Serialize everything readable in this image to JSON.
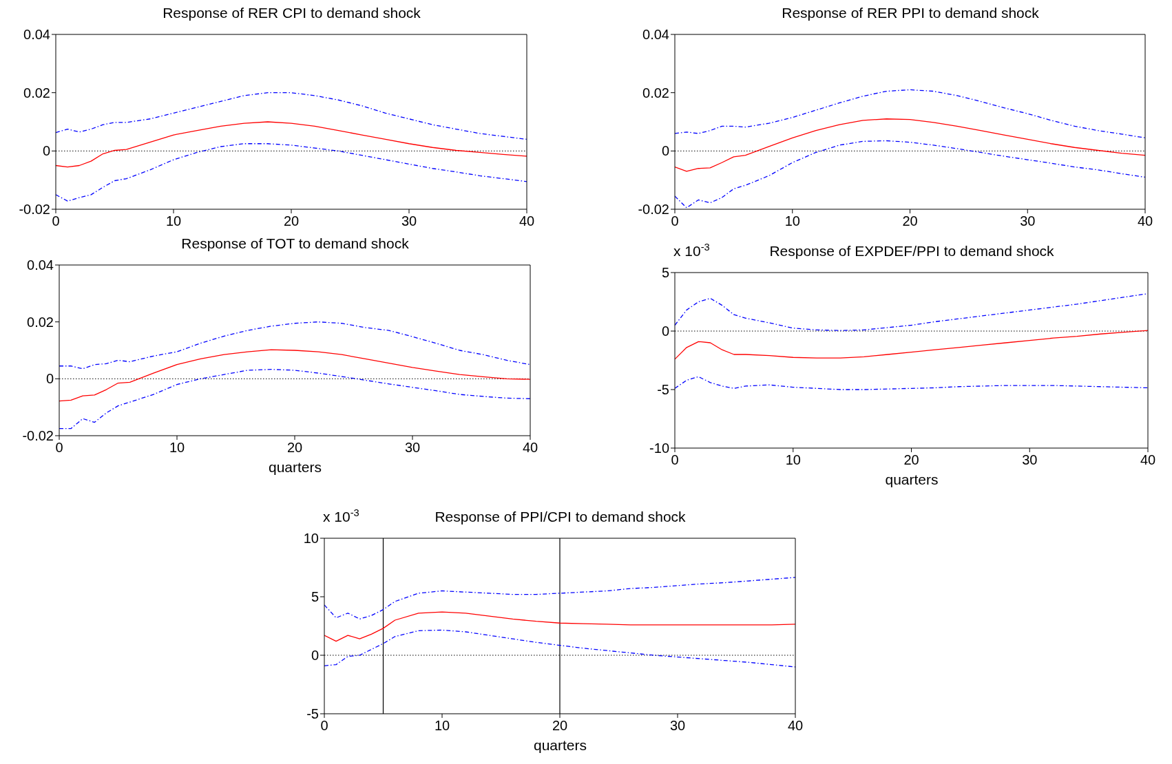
{
  "chart_data": [
    {
      "type": "line",
      "title": "Response of RER CPI to demand shock",
      "x": [
        0,
        1,
        2,
        3,
        4,
        5,
        6,
        8,
        10,
        12,
        14,
        16,
        18,
        20,
        22,
        24,
        26,
        28,
        30,
        32,
        34,
        36,
        38,
        40
      ],
      "xlim": [
        0,
        40
      ],
      "xticks": [
        0,
        10,
        20,
        30,
        40
      ],
      "ylim": [
        -0.02,
        0.04
      ],
      "yticks": [
        -0.02,
        0,
        0.02,
        0.04
      ],
      "line_style": "solid",
      "marker": "none",
      "series": [
        {
          "color": "#0000ff",
          "line_style": "dashed",
          "values": [
            0.0063,
            0.0075,
            0.0065,
            0.0075,
            0.009,
            0.0098,
            0.0098,
            0.011,
            0.013,
            0.015,
            0.017,
            0.019,
            0.02,
            0.02,
            0.019,
            0.0175,
            0.0155,
            0.013,
            0.011,
            0.009,
            0.0075,
            0.006,
            0.005,
            0.004
          ]
        },
        {
          "color": "#ff0000",
          "values": [
            -0.005,
            -0.0055,
            -0.005,
            -0.0035,
            -0.001,
            0.0002,
            0.0005,
            0.003,
            0.0055,
            0.007,
            0.0085,
            0.0095,
            0.01,
            0.0095,
            0.0085,
            0.007,
            0.0055,
            0.004,
            0.0025,
            0.0012,
            0.0002,
            -0.0005,
            -0.0012,
            -0.0018
          ]
        },
        {
          "color": "#0000ff",
          "line_style": "dashed",
          "values": [
            -0.015,
            -0.0172,
            -0.016,
            -0.015,
            -0.0125,
            -0.0102,
            -0.0095,
            -0.0065,
            -0.003,
            -0.0005,
            0.0015,
            0.0025,
            0.0025,
            0.002,
            0.001,
            0,
            -0.0015,
            -0.003,
            -0.0045,
            -0.006,
            -0.0072,
            -0.0085,
            -0.0095,
            -0.0105
          ]
        }
      ],
      "ref_lines": [
        {
          "axis": "y",
          "value": 0,
          "color": "#000000",
          "line_style": "dotted"
        }
      ]
    },
    {
      "type": "line",
      "title": "Response of RER PPI to demand shock",
      "x": [
        0,
        1,
        2,
        3,
        4,
        5,
        6,
        8,
        10,
        12,
        14,
        16,
        18,
        20,
        22,
        24,
        26,
        28,
        30,
        32,
        34,
        36,
        38,
        40
      ],
      "xlim": [
        0,
        40
      ],
      "xticks": [
        0,
        10,
        20,
        30,
        40
      ],
      "ylim": [
        -0.02,
        0.04
      ],
      "yticks": [
        -0.02,
        0,
        0.02,
        0.04
      ],
      "line_style": "solid",
      "marker": "none",
      "series": [
        {
          "color": "#0000ff",
          "line_style": "dashed",
          "values": [
            0.006,
            0.0065,
            0.006,
            0.007,
            0.0085,
            0.0085,
            0.0082,
            0.0095,
            0.0115,
            0.014,
            0.0165,
            0.0188,
            0.0205,
            0.021,
            0.0205,
            0.019,
            0.017,
            0.0148,
            0.0128,
            0.0105,
            0.0085,
            0.007,
            0.0058,
            0.0045
          ]
        },
        {
          "color": "#ff0000",
          "values": [
            -0.0055,
            -0.007,
            -0.006,
            -0.0058,
            -0.004,
            -0.002,
            -0.0015,
            0.0015,
            0.0045,
            0.007,
            0.009,
            0.0105,
            0.011,
            0.0108,
            0.0098,
            0.0085,
            0.007,
            0.0055,
            0.004,
            0.0025,
            0.0012,
            0.0002,
            -0.0008,
            -0.0015
          ]
        },
        {
          "color": "#0000ff",
          "line_style": "dashed",
          "values": [
            -0.0155,
            -0.0195,
            -0.0168,
            -0.0178,
            -0.016,
            -0.013,
            -0.0118,
            -0.0085,
            -0.004,
            -0.0005,
            0.002,
            0.0033,
            0.0035,
            0.003,
            0.002,
            0.0008,
            -0.0005,
            -0.0018,
            -0.003,
            -0.0042,
            -0.0055,
            -0.0065,
            -0.0078,
            -0.009
          ]
        }
      ],
      "ref_lines": [
        {
          "axis": "y",
          "value": 0,
          "color": "#000000",
          "line_style": "dotted"
        }
      ]
    },
    {
      "type": "line",
      "title": "Response of TOT to demand shock",
      "xlabel": "quarters",
      "x": [
        0,
        1,
        2,
        3,
        4,
        5,
        6,
        8,
        10,
        12,
        14,
        16,
        18,
        20,
        22,
        24,
        26,
        28,
        30,
        32,
        34,
        36,
        38,
        40
      ],
      "xlim": [
        0,
        40
      ],
      "xticks": [
        0,
        10,
        20,
        30,
        40
      ],
      "ylim": [
        -0.02,
        0.04
      ],
      "yticks": [
        -0.02,
        0,
        0.02,
        0.04
      ],
      "line_style": "solid",
      "marker": "none",
      "series": [
        {
          "color": "#0000ff",
          "line_style": "dashed",
          "values": [
            0.0045,
            0.0045,
            0.0035,
            0.005,
            0.0053,
            0.0065,
            0.006,
            0.008,
            0.0095,
            0.0125,
            0.015,
            0.017,
            0.0185,
            0.0195,
            0.02,
            0.0195,
            0.018,
            0.017,
            0.0148,
            0.0125,
            0.01,
            0.0085,
            0.0065,
            0.005
          ]
        },
        {
          "color": "#ff0000",
          "values": [
            -0.0078,
            -0.0075,
            -0.006,
            -0.0057,
            -0.0038,
            -0.0015,
            -0.0012,
            0.002,
            0.005,
            0.007,
            0.0085,
            0.0095,
            0.0102,
            0.01,
            0.0095,
            0.0085,
            0.007,
            0.0055,
            0.004,
            0.0027,
            0.0015,
            0.0007,
            0,
            -0.0002
          ]
        },
        {
          "color": "#0000ff",
          "line_style": "dashed",
          "values": [
            -0.0175,
            -0.0175,
            -0.014,
            -0.0153,
            -0.012,
            -0.0095,
            -0.0082,
            -0.0055,
            -0.002,
            0,
            0.0015,
            0.003,
            0.0033,
            0.003,
            0.002,
            0.0008,
            -0.0005,
            -0.0018,
            -0.003,
            -0.0042,
            -0.0055,
            -0.0062,
            -0.0068,
            -0.007
          ]
        }
      ],
      "ref_lines": [
        {
          "axis": "y",
          "value": 0,
          "color": "#000000",
          "line_style": "dotted"
        }
      ]
    },
    {
      "type": "line",
      "title": "Response of EXPDEF/PPI to demand shock",
      "xlabel": "quarters",
      "annotations": [
        "x 10$^{-3}$"
      ],
      "x": [
        0,
        1,
        2,
        3,
        4,
        5,
        6,
        8,
        10,
        12,
        14,
        16,
        18,
        20,
        22,
        24,
        26,
        28,
        30,
        32,
        34,
        36,
        38,
        40
      ],
      "xlim": [
        0,
        40
      ],
      "xticks": [
        0,
        10,
        20,
        30,
        40
      ],
      "ylim": [
        -10,
        5
      ],
      "yticks": [
        -10,
        -5,
        0,
        5
      ],
      "line_style": "solid",
      "marker": "none",
      "series": [
        {
          "color": "#0000ff",
          "line_style": "dashed",
          "values": [
            0.5,
            1.8,
            2.5,
            2.8,
            2.2,
            1.4,
            1.1,
            0.7,
            0.25,
            0.1,
            0.05,
            0.1,
            0.3,
            0.5,
            0.8,
            1.05,
            1.3,
            1.55,
            1.8,
            2.05,
            2.3,
            2.6,
            2.9,
            3.2
          ]
        },
        {
          "color": "#ff0000",
          "values": [
            -2.4,
            -1.4,
            -0.9,
            -1.0,
            -1.6,
            -2.0,
            -2.0,
            -2.1,
            -2.25,
            -2.3,
            -2.3,
            -2.2,
            -2.0,
            -1.8,
            -1.6,
            -1.4,
            -1.2,
            -1.0,
            -0.8,
            -0.6,
            -0.45,
            -0.25,
            -0.1,
            0.05
          ]
        },
        {
          "color": "#0000ff",
          "line_style": "dashed",
          "values": [
            -4.9,
            -4.2,
            -3.9,
            -4.4,
            -4.7,
            -4.9,
            -4.7,
            -4.6,
            -4.8,
            -4.9,
            -5.0,
            -5.0,
            -4.95,
            -4.9,
            -4.85,
            -4.75,
            -4.7,
            -4.65,
            -4.65,
            -4.65,
            -4.7,
            -4.75,
            -4.8,
            -4.85
          ]
        }
      ],
      "ref_lines": [
        {
          "axis": "y",
          "value": 0,
          "color": "#000000",
          "line_style": "dotted"
        }
      ]
    },
    {
      "type": "line",
      "title": "Response of PPI/CPI to demand shock",
      "xlabel": "quarters",
      "annotations": [
        "x 10$^{-3}$"
      ],
      "x": [
        0,
        1,
        2,
        3,
        4,
        5,
        6,
        8,
        10,
        12,
        14,
        16,
        18,
        20,
        22,
        24,
        26,
        28,
        30,
        32,
        34,
        36,
        38,
        40
      ],
      "xlim": [
        0,
        40
      ],
      "xticks": [
        0,
        10,
        20,
        30,
        40
      ],
      "ylim": [
        -5,
        10
      ],
      "yticks": [
        -5,
        0,
        5,
        10
      ],
      "line_style": "solid",
      "marker": "none",
      "series": [
        {
          "color": "#0000ff",
          "line_style": "dashed",
          "values": [
            4.3,
            3.2,
            3.6,
            3.1,
            3.4,
            3.9,
            4.6,
            5.3,
            5.5,
            5.4,
            5.3,
            5.2,
            5.2,
            5.3,
            5.4,
            5.5,
            5.7,
            5.8,
            5.95,
            6.1,
            6.2,
            6.35,
            6.5,
            6.65
          ]
        },
        {
          "color": "#ff0000",
          "values": [
            1.7,
            1.2,
            1.7,
            1.4,
            1.8,
            2.3,
            3.0,
            3.6,
            3.7,
            3.6,
            3.35,
            3.1,
            2.9,
            2.75,
            2.7,
            2.65,
            2.6,
            2.6,
            2.6,
            2.6,
            2.6,
            2.6,
            2.6,
            2.65
          ]
        },
        {
          "color": "#0000ff",
          "line_style": "dashed",
          "values": [
            -0.9,
            -0.8,
            -0.1,
            0.0,
            0.5,
            1.0,
            1.6,
            2.1,
            2.15,
            2.0,
            1.7,
            1.4,
            1.1,
            0.85,
            0.6,
            0.4,
            0.2,
            0.0,
            -0.15,
            -0.3,
            -0.45,
            -0.6,
            -0.8,
            -1.0
          ]
        }
      ],
      "ref_lines": [
        {
          "axis": "y",
          "value": 0,
          "color": "#000000",
          "line_style": "dotted"
        },
        {
          "axis": "x",
          "value": 5,
          "color": "#000000",
          "line_style": "solid"
        },
        {
          "axis": "x",
          "value": 20,
          "color": "#000000",
          "line_style": "solid"
        }
      ]
    }
  ]
}
